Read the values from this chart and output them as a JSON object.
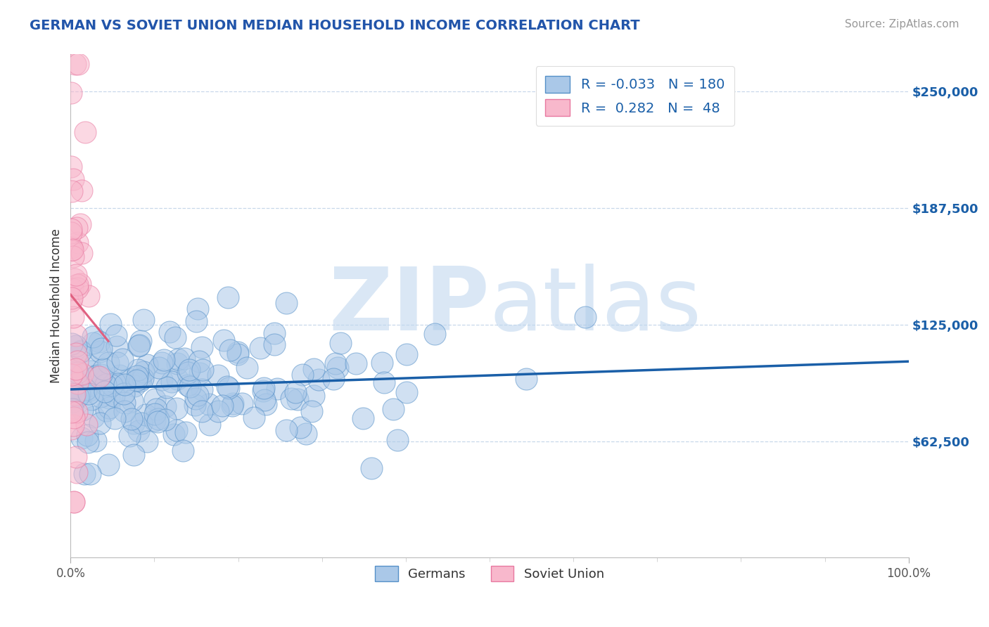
{
  "title": "GERMAN VS SOVIET UNION MEDIAN HOUSEHOLD INCOME CORRELATION CHART",
  "source": "Source: ZipAtlas.com",
  "ylabel": "Median Household Income",
  "xlim": [
    0,
    1
  ],
  "ylim": [
    0,
    270000
  ],
  "yticks": [
    62500,
    125000,
    187500,
    250000
  ],
  "ytick_labels": [
    "$62,500",
    "$125,000",
    "$187,500",
    "$250,000"
  ],
  "xtick_labels": [
    "0.0%",
    "100.0%"
  ],
  "blue_color": "#aac8e8",
  "blue_edge": "#5590c8",
  "pink_color": "#f8b8cc",
  "pink_edge": "#e878a0",
  "line_color": "#1a5fa8",
  "pink_line_color": "#e06080",
  "blue_R": -0.033,
  "blue_N": 180,
  "pink_R": 0.282,
  "pink_N": 48,
  "watermark_zip": "ZIP",
  "watermark_atlas": "atlas",
  "legend_labels": [
    "Germans",
    "Soviet Union"
  ],
  "background_color": "#ffffff",
  "grid_color": "#c8d8ea",
  "title_color": "#2255aa",
  "source_color": "#999999"
}
